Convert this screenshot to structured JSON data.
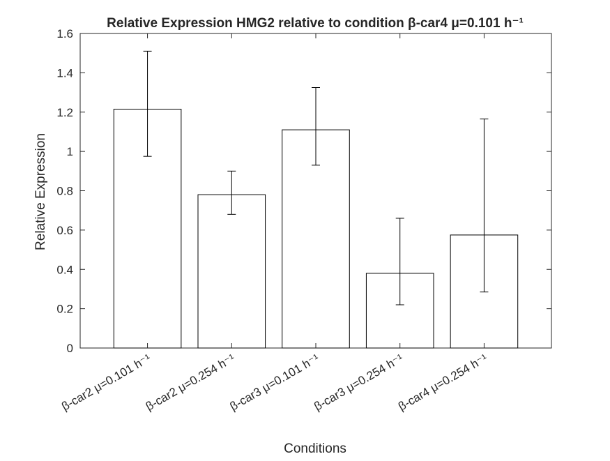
{
  "chart_data": {
    "type": "bar",
    "title": "Relative Expression HMG2 relative to condition β-car4 μ=0.101 h⁻¹",
    "xlabel": "Conditions",
    "ylabel": "Relative Expression",
    "categories": [
      "β-car2 μ=0.101 h⁻¹",
      "β-car2 μ=0.254 h⁻¹",
      "β-car3 μ=0.101 h⁻¹",
      "β-car3 μ=0.254 h⁻¹",
      "β-car4 μ=0.254 h⁻¹"
    ],
    "values": [
      1.215,
      0.78,
      1.11,
      0.38,
      0.575
    ],
    "error_low": [
      0.975,
      0.68,
      0.93,
      0.22,
      0.285
    ],
    "error_high": [
      1.51,
      0.9,
      1.325,
      0.66,
      1.165
    ],
    "ylim": [
      0,
      1.6
    ],
    "yticks": [
      "0",
      "0.2",
      "0.4",
      "0.6",
      "0.8",
      "1",
      "1.2",
      "1.4",
      "1.6"
    ],
    "grid": false,
    "colors": {
      "bar_fill": "#ffffff",
      "bar_edge": "#000000",
      "axis": "#262626"
    }
  }
}
